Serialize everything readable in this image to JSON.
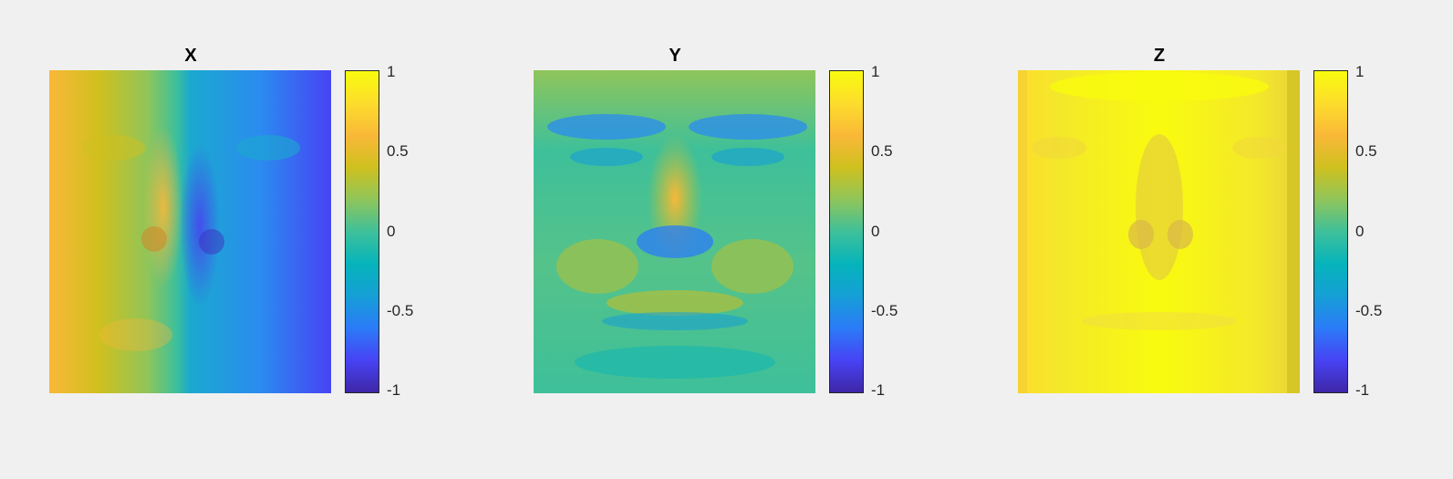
{
  "chart_data": [
    {
      "type": "heatmap",
      "title": "X",
      "colormap": "parula",
      "clim": [
        -1,
        1
      ],
      "colorbar_ticks": [
        1,
        0.5,
        0,
        -0.5,
        -1
      ],
      "colorbar_tick_labels": [
        "1",
        "0.5",
        "0",
        "-0.5",
        "-1"
      ],
      "description_values": "face surface normal x-component: positive (orange) on left, negative (blue) on right"
    },
    {
      "type": "heatmap",
      "title": "Y",
      "colormap": "parula",
      "clim": [
        -1,
        1
      ],
      "colorbar_ticks": [
        1,
        0.5,
        0,
        -0.5,
        -1
      ],
      "colorbar_tick_labels": [
        "1",
        "0.5",
        "0",
        "-0.5",
        "-1"
      ],
      "description_values": "face surface normal y-component: mostly teal/green (~0.2) with orange nose ridge and blue brows"
    },
    {
      "type": "heatmap",
      "title": "Z",
      "colormap": "parula",
      "clim": [
        -1,
        1
      ],
      "colorbar_ticks": [
        1,
        0.5,
        0,
        -0.5,
        -1
      ],
      "colorbar_tick_labels": [
        "1",
        "0.5",
        "0",
        "-0.5",
        "-1"
      ],
      "description_values": "face surface normal z-component: mostly yellow (~0.9)"
    }
  ],
  "colors": {
    "background": "#f0f0f0",
    "parula_stops": [
      "#3e26a8",
      "#4743f4",
      "#2b7bf8",
      "#159fd6",
      "#06b4bb",
      "#3ec09a",
      "#8fc55a",
      "#cfc01f",
      "#f9b838",
      "#fddd2c",
      "#f9fb0e"
    ]
  }
}
